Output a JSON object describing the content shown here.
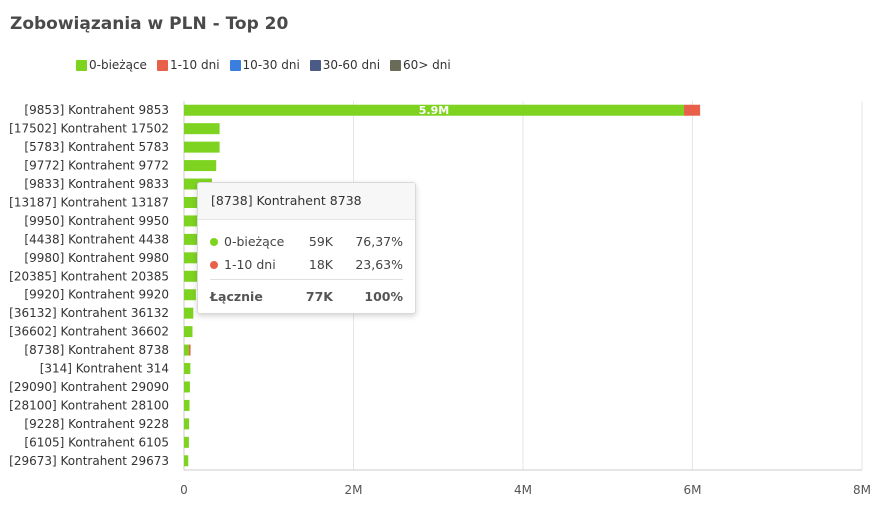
{
  "chart_data": {
    "type": "bar",
    "orientation": "horizontal",
    "stacked": true,
    "title": "Zobowiązania w PLN - Top 20",
    "categories": [
      "[9853] Kontrahent 9853",
      "[17502] Kontrahent 17502",
      "[5783] Kontrahent 5783",
      "[9772] Kontrahent 9772",
      "[9833] Kontrahent 9833",
      "[13187] Kontrahent 13187",
      "[9950] Kontrahent 9950",
      "[4438] Kontrahent 4438",
      "[9980] Kontrahent 9980",
      "[20385] Kontrahent 20385",
      "[9920] Kontrahent 9920",
      "[36132] Kontrahent 36132",
      "[36602] Kontrahent 36602",
      "[8738] Kontrahent 8738",
      "[314] Kontrahent 314",
      "[29090] Kontrahent 29090",
      "[28100] Kontrahent 28100",
      "[9228] Kontrahent 9228",
      "[6105] Kontrahent 6105",
      "[29673] Kontrahent 29673"
    ],
    "series": [
      {
        "name": "0-bieżące",
        "color": "#7ed321",
        "values": [
          5900000,
          420000,
          420000,
          380000,
          330000,
          300000,
          280000,
          260000,
          240000,
          220000,
          140000,
          110000,
          100000,
          59000,
          75000,
          70000,
          65000,
          60000,
          58000,
          50000
        ]
      },
      {
        "name": "1-10 dni",
        "color": "#e9604a",
        "values": [
          190000,
          0,
          0,
          0,
          0,
          0,
          0,
          0,
          0,
          0,
          0,
          0,
          0,
          18000,
          0,
          0,
          0,
          0,
          0,
          0
        ]
      },
      {
        "name": "10-30 dni",
        "color": "#3a7fe0",
        "values": [
          0,
          0,
          0,
          0,
          0,
          0,
          0,
          0,
          0,
          0,
          0,
          0,
          0,
          0,
          0,
          0,
          0,
          0,
          0,
          0
        ]
      },
      {
        "name": "30-60 dni",
        "color": "#4a5b86",
        "values": [
          0,
          0,
          0,
          0,
          0,
          0,
          0,
          0,
          0,
          0,
          0,
          0,
          0,
          0,
          0,
          0,
          0,
          0,
          0,
          0
        ]
      },
      {
        "name": "60> dni",
        "color": "#6b6b5a",
        "values": [
          0,
          0,
          0,
          0,
          0,
          0,
          0,
          0,
          0,
          0,
          0,
          0,
          0,
          0,
          0,
          0,
          0,
          0,
          0,
          0
        ]
      }
    ],
    "data_labels": [
      {
        "category_index": 0,
        "series_index": 0,
        "text": "5.9M"
      }
    ],
    "xlim": [
      0,
      8000000
    ],
    "x_ticks": [
      0,
      2000000,
      4000000,
      6000000,
      8000000
    ],
    "x_tick_labels": [
      "0",
      "2M",
      "4M",
      "6M",
      "8M"
    ],
    "grid": true,
    "legend_position": "top-left"
  },
  "tooltip": {
    "title": "[8738] Kontrahent 8738",
    "rows": [
      {
        "label": "0-bieżące",
        "value": "59K",
        "percent": "76,37%",
        "color": "#7ed321"
      },
      {
        "label": "1-10 dni",
        "value": "18K",
        "percent": "23,63%",
        "color": "#e9604a"
      }
    ],
    "total": {
      "label": "Łącznie",
      "value": "77K",
      "percent": "100%"
    }
  }
}
